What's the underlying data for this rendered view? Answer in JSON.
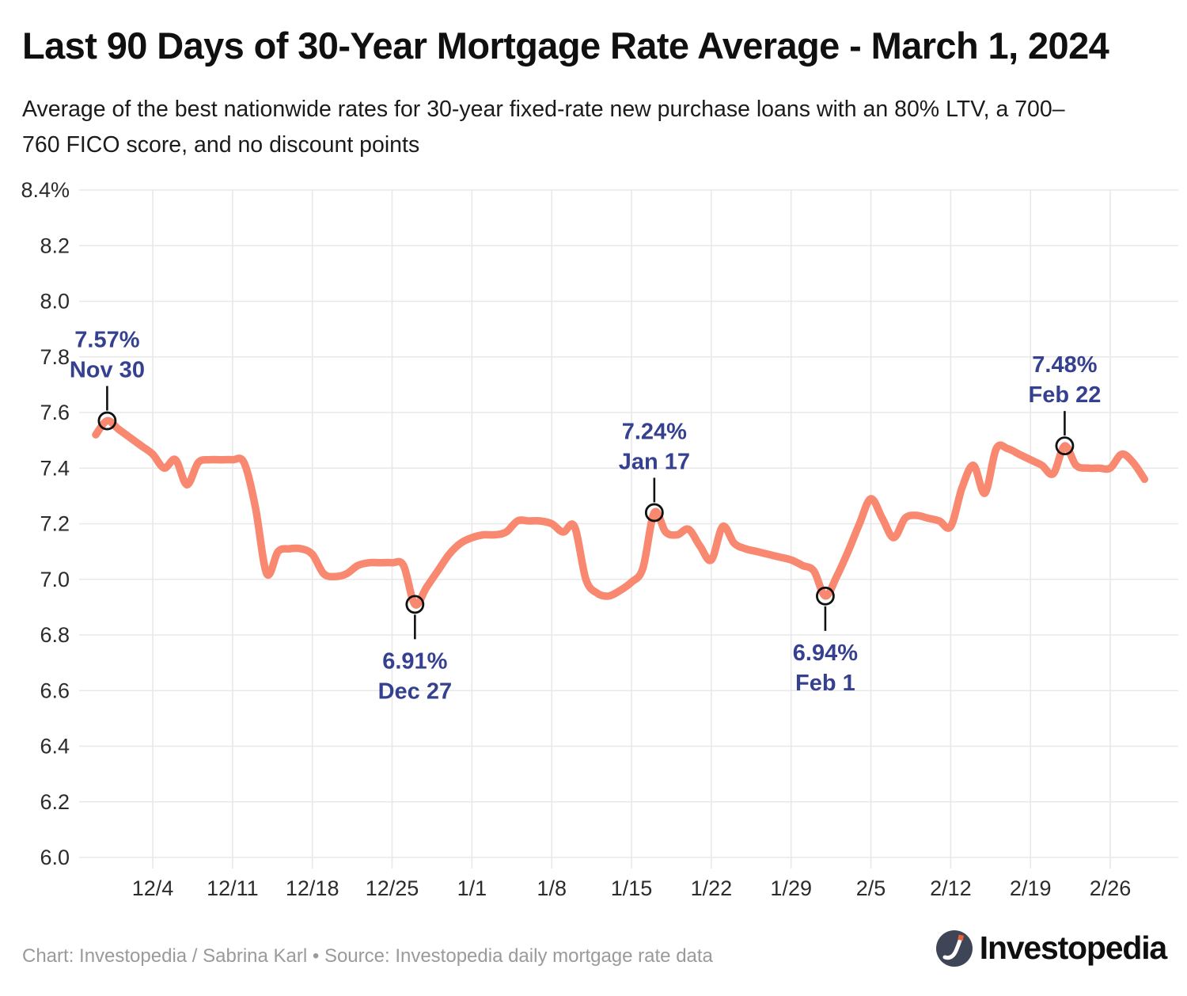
{
  "header": {
    "title": "Last 90 Days of 30-Year Mortgage Rate Average - March 1, 2024",
    "subtitle_lines": [
      "Average of the best nationwide rates for 30-year fixed-rate new purchase loans with an 80% LTV, a 700–",
      "760 FICO score, and no discount points"
    ]
  },
  "footer": {
    "credit": "Chart: Investopedia / Sabrina Karl • Source: Investopedia daily mortgage rate data",
    "logo_text": "Investopedia"
  },
  "colors": {
    "line": "#F8886F",
    "grid": "#E8E8E8",
    "marker": "#111111",
    "annotation": "#35418F",
    "tick_text": "#2b2b2b",
    "logo_circle": "#3E4557",
    "logo_dot": "#EC6238"
  },
  "chart_data": {
    "type": "line",
    "title": "Last 90 Days of 30-Year Mortgage Rate Average - March 1, 2024",
    "subtitle": "Average of the best nationwide rates for 30-year fixed-rate new purchase loans with an 80% LTV, a 700–760 FICO score, and no discount points",
    "xlabel": "",
    "ylabel": "",
    "ylim": [
      6.0,
      8.4
    ],
    "grid": true,
    "legend": false,
    "y_ticks": [
      {
        "v": 8.4,
        "label": "8.4%"
      },
      {
        "v": 8.2,
        "label": "8.2"
      },
      {
        "v": 8.0,
        "label": "8.0"
      },
      {
        "v": 7.8,
        "label": "7.8"
      },
      {
        "v": 7.6,
        "label": "7.6"
      },
      {
        "v": 7.4,
        "label": "7.4"
      },
      {
        "v": 7.2,
        "label": "7.2"
      },
      {
        "v": 7.0,
        "label": "7.0"
      },
      {
        "v": 6.8,
        "label": "6.8"
      },
      {
        "v": 6.6,
        "label": "6.6"
      },
      {
        "v": 6.4,
        "label": "6.4"
      },
      {
        "v": 6.2,
        "label": "6.2"
      },
      {
        "v": 6.0,
        "label": "6.0"
      }
    ],
    "x_ticks": [
      {
        "label": "12/4",
        "index": 5
      },
      {
        "label": "12/11",
        "index": 12
      },
      {
        "label": "12/18",
        "index": 19
      },
      {
        "label": "12/25",
        "index": 26
      },
      {
        "label": "1/1",
        "index": 33
      },
      {
        "label": "1/8",
        "index": 40
      },
      {
        "label": "1/15",
        "index": 47
      },
      {
        "label": "1/22",
        "index": 54
      },
      {
        "label": "1/29",
        "index": 61
      },
      {
        "label": "2/5",
        "index": 68
      },
      {
        "label": "2/12",
        "index": 75
      },
      {
        "label": "2/19",
        "index": 82
      },
      {
        "label": "2/26",
        "index": 89
      }
    ],
    "series": [
      {
        "name": "30-year fixed-rate new purchase average",
        "dates": [
          "11/29",
          "11/30",
          "12/1",
          "12/2",
          "12/3",
          "12/4",
          "12/5",
          "12/6",
          "12/7",
          "12/8",
          "12/9",
          "12/10",
          "12/11",
          "12/12",
          "12/13",
          "12/14",
          "12/15",
          "12/16",
          "12/17",
          "12/18",
          "12/19",
          "12/20",
          "12/21",
          "12/22",
          "12/23",
          "12/24",
          "12/25",
          "12/26",
          "12/27",
          "12/28",
          "12/29",
          "12/30",
          "12/31",
          "1/1",
          "1/2",
          "1/3",
          "1/4",
          "1/5",
          "1/6",
          "1/7",
          "1/8",
          "1/9",
          "1/10",
          "1/11",
          "1/12",
          "1/13",
          "1/14",
          "1/15",
          "1/16",
          "1/17",
          "1/18",
          "1/19",
          "1/20",
          "1/21",
          "1/22",
          "1/23",
          "1/24",
          "1/25",
          "1/26",
          "1/27",
          "1/28",
          "1/29",
          "1/30",
          "1/31",
          "2/1",
          "2/2",
          "2/3",
          "2/4",
          "2/5",
          "2/6",
          "2/7",
          "2/8",
          "2/9",
          "2/10",
          "2/11",
          "2/12",
          "2/13",
          "2/14",
          "2/15",
          "2/16",
          "2/17",
          "2/18",
          "2/19",
          "2/20",
          "2/21",
          "2/22",
          "2/23",
          "2/24",
          "2/25",
          "2/26",
          "2/27",
          "2/28",
          "2/29"
        ],
        "values": [
          7.52,
          7.57,
          7.54,
          7.51,
          7.48,
          7.45,
          7.4,
          7.43,
          7.34,
          7.42,
          7.43,
          7.43,
          7.43,
          7.42,
          7.26,
          7.02,
          7.1,
          7.11,
          7.11,
          7.09,
          7.02,
          7.01,
          7.02,
          7.05,
          7.06,
          7.06,
          7.06,
          7.05,
          6.91,
          6.97,
          7.03,
          7.09,
          7.13,
          7.15,
          7.16,
          7.16,
          7.17,
          7.21,
          7.21,
          7.21,
          7.2,
          7.17,
          7.19,
          7.0,
          6.95,
          6.94,
          6.96,
          6.99,
          7.04,
          7.24,
          7.17,
          7.16,
          7.18,
          7.12,
          7.07,
          7.19,
          7.13,
          7.11,
          7.1,
          7.09,
          7.08,
          7.07,
          7.05,
          7.03,
          6.94,
          7.01,
          7.1,
          7.2,
          7.29,
          7.22,
          7.15,
          7.22,
          7.23,
          7.22,
          7.21,
          7.19,
          7.33,
          7.41,
          7.31,
          7.47,
          7.47,
          7.45,
          7.43,
          7.41,
          7.38,
          7.48,
          7.41,
          7.4,
          7.4,
          7.4,
          7.45,
          7.42,
          7.36
        ]
      }
    ],
    "annotations": [
      {
        "index": 1,
        "value_label": "7.57%",
        "date_label": "Nov 30",
        "side": "above"
      },
      {
        "index": 28,
        "value_label": "6.91%",
        "date_label": "Dec 27",
        "side": "below"
      },
      {
        "index": 49,
        "value_label": "7.24%",
        "date_label": "Jan 17",
        "side": "above"
      },
      {
        "index": 64,
        "value_label": "6.94%",
        "date_label": "Feb 1",
        "side": "below"
      },
      {
        "index": 85,
        "value_label": "7.48%",
        "date_label": "Feb 22",
        "side": "above"
      }
    ]
  }
}
